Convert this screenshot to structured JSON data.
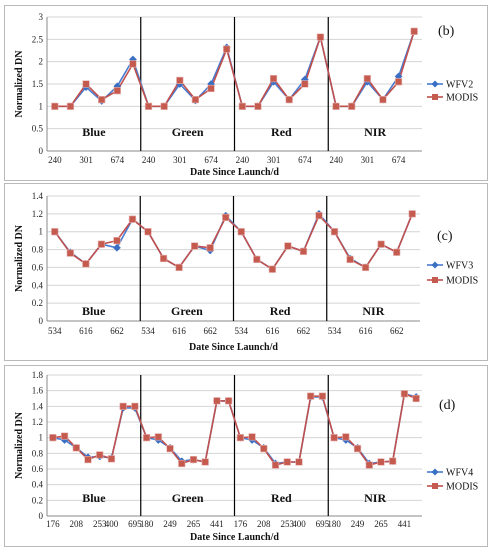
{
  "series_colors": {
    "s1": "#3a6fc4",
    "s2": "#c55a4f",
    "line1": "#4a7bd0",
    "line2": "#c0504d"
  },
  "chart_data": [
    {
      "type": "line",
      "panel_label": "(b)",
      "ylabel": "Normalized DN",
      "xlabel": "Date  Since Launch/d",
      "ylim": [
        0,
        3
      ],
      "yticks": [
        0,
        0.5,
        1,
        1.5,
        2,
        2.5,
        3
      ],
      "yfmt": 1,
      "grid": true,
      "legend": "right",
      "groups": [
        "Blue",
        "Green",
        "Red",
        "NIR"
      ],
      "points_per_group": 6,
      "tick_labels": [
        "240",
        "301",
        "674"
      ],
      "tick_positions": [
        0,
        2,
        4
      ],
      "series": [
        {
          "name": "WFV2",
          "values": [
            1.0,
            1.0,
            1.43,
            1.12,
            1.45,
            2.05,
            1.0,
            1.0,
            1.5,
            1.13,
            1.5,
            2.32,
            1.0,
            1.0,
            1.55,
            1.15,
            1.6,
            2.55,
            1.0,
            1.0,
            1.55,
            1.15,
            1.67,
            2.68
          ]
        },
        {
          "name": "MODIS",
          "values": [
            1.0,
            1.0,
            1.5,
            1.15,
            1.35,
            1.95,
            1.0,
            1.0,
            1.58,
            1.15,
            1.4,
            2.28,
            1.0,
            1.0,
            1.62,
            1.15,
            1.5,
            2.55,
            1.0,
            1.0,
            1.62,
            1.15,
            1.55,
            2.68
          ]
        }
      ]
    },
    {
      "type": "line",
      "panel_label": "(c)",
      "ylabel": "Normalized DN",
      "xlabel": "Date  Since Launch/d",
      "ylim": [
        0,
        1.4
      ],
      "yticks": [
        0,
        0.2,
        0.4,
        0.6,
        0.8,
        1,
        1.2,
        1.4
      ],
      "yfmt": 1,
      "grid": true,
      "legend": "right",
      "groups": [
        "Blue",
        "Green",
        "Red",
        "NIR"
      ],
      "points_per_group": 6,
      "tick_labels": [
        "534",
        "616",
        "662"
      ],
      "tick_positions": [
        0,
        2,
        4
      ],
      "series": [
        {
          "name": "WFV3",
          "values": [
            1.0,
            0.77,
            0.64,
            0.86,
            0.82,
            1.14,
            1.0,
            0.7,
            0.6,
            0.84,
            0.79,
            1.18,
            1.0,
            0.69,
            0.58,
            0.84,
            0.78,
            1.2,
            1.0,
            0.7,
            0.6,
            0.86,
            0.77,
            1.2
          ]
        },
        {
          "name": "MODIS",
          "values": [
            1.0,
            0.76,
            0.64,
            0.86,
            0.9,
            1.14,
            1.0,
            0.7,
            0.6,
            0.84,
            0.82,
            1.16,
            1.0,
            0.69,
            0.58,
            0.84,
            0.78,
            1.18,
            1.0,
            0.69,
            0.6,
            0.86,
            0.77,
            1.2
          ]
        }
      ]
    },
    {
      "type": "line",
      "panel_label": "(d)",
      "ylabel": "Normalized DN",
      "xlabel": "Date Since Launch/d",
      "ylim": [
        0,
        1.8
      ],
      "yticks": [
        0,
        0.2,
        0.4,
        0.6,
        0.8,
        1,
        1.2,
        1.4,
        1.6,
        1.8
      ],
      "yfmt": 1,
      "grid": true,
      "legend": "right",
      "groups": [
        "Blue",
        "Green",
        "Red",
        "NIR"
      ],
      "points_per_group": 8,
      "tick_labels_per_group": [
        [
          "176",
          "208",
          "253",
          "400",
          "695"
        ],
        [
          "180",
          "249",
          "265",
          "441"
        ],
        [
          "176",
          "208",
          "253",
          "400",
          "695"
        ],
        [
          "180",
          "249",
          "265",
          "441"
        ]
      ],
      "tick_positions_per_group": [
        [
          0,
          2,
          4,
          5,
          7
        ],
        [
          0,
          2,
          4,
          6
        ],
        [
          0,
          2,
          4,
          5,
          7
        ],
        [
          0,
          2,
          4,
          6
        ]
      ],
      "series": [
        {
          "name": "WFV4",
          "values": [
            1.0,
            0.97,
            0.87,
            0.75,
            0.76,
            0.74,
            1.38,
            1.38,
            1.0,
            0.97,
            0.87,
            0.7,
            0.72,
            0.69,
            1.47,
            1.47,
            1.0,
            0.97,
            0.87,
            0.67,
            0.69,
            0.69,
            1.52,
            1.52,
            1.0,
            0.97,
            0.87,
            0.67,
            0.69,
            0.7,
            1.56,
            1.52
          ]
        },
        {
          "name": "MODIS",
          "values": [
            1.0,
            1.02,
            0.87,
            0.72,
            0.78,
            0.73,
            1.4,
            1.4,
            1.0,
            1.01,
            0.86,
            0.67,
            0.72,
            0.69,
            1.47,
            1.47,
            1.0,
            1.01,
            0.86,
            0.65,
            0.69,
            0.69,
            1.53,
            1.53,
            1.0,
            1.01,
            0.86,
            0.65,
            0.69,
            0.7,
            1.56,
            1.5
          ]
        }
      ]
    }
  ]
}
